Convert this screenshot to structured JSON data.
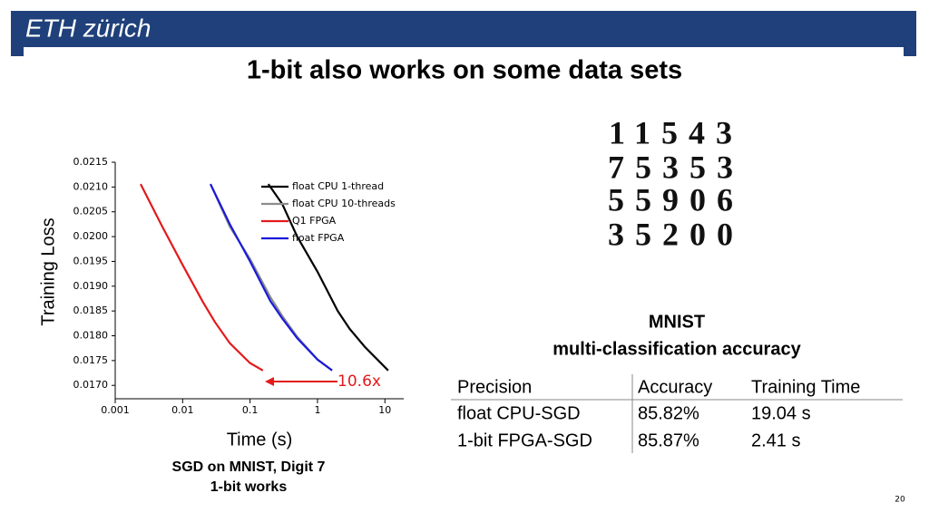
{
  "header": {
    "logo": "ETH zürich",
    "title": "1-bit also works on some data sets"
  },
  "chart_data": {
    "type": "line",
    "x_label": "Time (s)",
    "y_label": "Training Loss",
    "xscale": "log",
    "xlim": [
      0.001,
      19
    ],
    "xticks": [
      0.001,
      0.01,
      0.1,
      1,
      10
    ],
    "ylim": [
      0.01673,
      0.0215
    ],
    "yticks": [
      0.0215,
      {
        "value": 0.021,
        "label": "0.0210"
      },
      0.0205,
      {
        "value": 0.02,
        "label": "0.0200"
      },
      0.0195,
      {
        "value": 0.019,
        "label": "0.0190"
      },
      0.0185,
      {
        "value": 0.018,
        "label": "0.0180"
      },
      0.0175,
      {
        "value": 0.017,
        "label": "0.0170"
      }
    ],
    "legend": "top-center",
    "series": [
      {
        "name": "float CPU 1-thread",
        "color": "#000000",
        "x": [
          0.187,
          0.3,
          0.5,
          1,
          2,
          3,
          5,
          11.2
        ],
        "values": [
          0.02106,
          0.02066,
          0.02,
          0.01929,
          0.0185,
          0.01814,
          0.01778,
          0.0173
        ]
      },
      {
        "name": "float CPU 10-threads",
        "color": "#8c8c8c",
        "x": [
          0.0259,
          0.05,
          0.1,
          0.2,
          0.3,
          0.5,
          1,
          1.65
        ],
        "values": [
          0.02106,
          0.0202,
          0.01955,
          0.01878,
          0.0184,
          0.01798,
          0.01752,
          0.0173
        ]
      },
      {
        "name": "Q1 FPGA",
        "color": "#e31a1c",
        "x": [
          0.00238,
          0.005,
          0.01,
          0.02,
          0.03,
          0.05,
          0.1,
          0.155
        ],
        "values": [
          0.02106,
          0.0202,
          0.01943,
          0.01868,
          0.01828,
          0.01785,
          0.01745,
          0.0173
        ]
      },
      {
        "name": "float FPGA",
        "color": "#1a1adb",
        "x": [
          0.0259,
          0.05,
          0.1,
          0.2,
          0.3,
          0.5,
          1,
          1.65
        ],
        "values": [
          0.02106,
          0.02025,
          0.0195,
          0.0187,
          0.01835,
          0.01795,
          0.01752,
          0.0173
        ]
      }
    ],
    "annotations": [
      "10.6x"
    ],
    "caption": [
      "SGD on MNIST, Digit 7",
      "1-bit works"
    ]
  },
  "mnist_digits": [
    "11543",
    "75353",
    "55906",
    "35200"
  ],
  "table": {
    "title": [
      "MNIST",
      "multi-classification accuracy"
    ],
    "header": [
      "Precision",
      "Accuracy",
      "Training Time"
    ],
    "rows": [
      [
        "float CPU-SGD",
        "85.82%",
        "19.04 s"
      ],
      [
        "1-bit FPGA-SGD",
        "85.87%",
        "2.41 s"
      ]
    ]
  },
  "page_number": "20"
}
